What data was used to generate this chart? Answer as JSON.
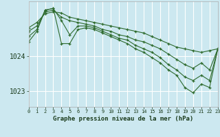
{
  "xlabel": "Graphe pression niveau de la mer (hPa)",
  "background_color": "#cce8f0",
  "grid_color": "#ffffff",
  "line_color": "#2d6a2d",
  "x_ticks": [
    0,
    1,
    2,
    3,
    4,
    5,
    6,
    7,
    8,
    9,
    10,
    11,
    12,
    13,
    14,
    15,
    16,
    17,
    18,
    19,
    20,
    21,
    22,
    23
  ],
  "y_ticks": [
    1023,
    1024
  ],
  "ylim": [
    1022.55,
    1025.55
  ],
  "xlim": [
    0,
    23
  ],
  "series": [
    [
      1024.8,
      1024.95,
      1025.2,
      1025.25,
      1025.22,
      1025.1,
      1025.05,
      1025.0,
      1024.95,
      1024.9,
      1024.85,
      1024.8,
      1024.75,
      1024.7,
      1024.65,
      1024.55,
      1024.45,
      1024.35,
      1024.25,
      1024.2,
      1024.15,
      1024.1,
      1024.15,
      1024.2
    ],
    [
      1024.7,
      1024.85,
      1025.25,
      1025.3,
      1025.1,
      1025.0,
      1024.95,
      1024.9,
      1024.85,
      1024.75,
      1024.7,
      1024.6,
      1024.55,
      1024.45,
      1024.4,
      1024.3,
      1024.2,
      1024.05,
      1023.9,
      1023.75,
      1023.65,
      1023.8,
      1023.6,
      1024.2
    ],
    [
      1024.55,
      1024.75,
      1025.3,
      1025.35,
      1025.0,
      1024.6,
      1024.85,
      1024.85,
      1024.8,
      1024.7,
      1024.6,
      1024.5,
      1024.45,
      1024.3,
      1024.2,
      1024.1,
      1023.95,
      1023.75,
      1023.6,
      1023.4,
      1023.3,
      1023.45,
      1023.3,
      1024.2
    ],
    [
      1024.4,
      1024.7,
      1025.3,
      1025.35,
      1024.35,
      1024.35,
      1024.75,
      1024.8,
      1024.75,
      1024.65,
      1024.55,
      1024.45,
      1024.35,
      1024.2,
      1024.1,
      1023.95,
      1023.8,
      1023.6,
      1023.45,
      1023.1,
      1022.95,
      1023.2,
      1023.1,
      1024.2
    ]
  ]
}
